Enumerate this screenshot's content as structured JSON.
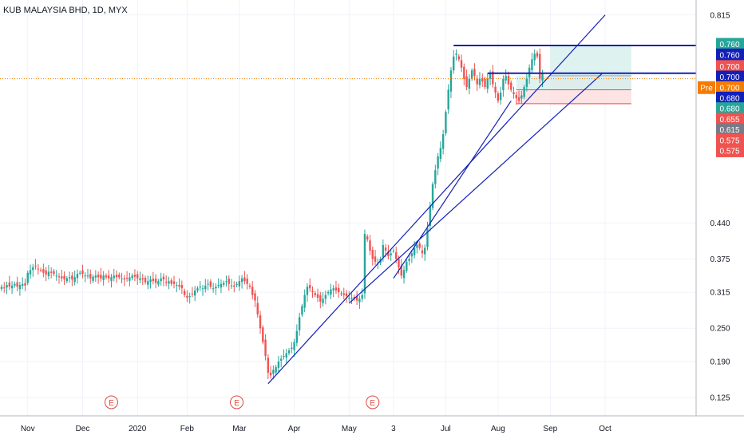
{
  "header": {
    "title": "KUB MALAYSIA BHD, 1D, MYX"
  },
  "colors": {
    "up": "#26a69a",
    "down": "#ef5350",
    "line": "#1320b8",
    "grid": "#f0f3fa",
    "axis": "#b2b5be",
    "current": "#f57c00",
    "target_fill": "#d6efec",
    "stop_fill": "#fde2e2"
  },
  "chart_data": {
    "type": "candlestick",
    "title": "KUB MALAYSIA BHD, 1D, MYX",
    "xlabel": "",
    "ylabel": "",
    "ylim": [
      0.092,
      0.842
    ],
    "grid": true,
    "x_ticks": [
      {
        "label": "Nov",
        "i": 10
      },
      {
        "label": "Dec",
        "i": 31
      },
      {
        "label": "2020",
        "i": 52
      },
      {
        "label": "Feb",
        "i": 71
      },
      {
        "label": "Mar",
        "i": 91
      },
      {
        "label": "Apr",
        "i": 112
      },
      {
        "label": "May",
        "i": 133
      },
      {
        "label": "3",
        "i": 150
      },
      {
        "label": "Jul",
        "i": 170
      },
      {
        "label": "Aug",
        "i": 190
      },
      {
        "label": "Sep",
        "i": 210
      },
      {
        "label": "Oct",
        "i": 231
      }
    ],
    "y_ticks": [
      "0.815",
      "0.440",
      "0.375",
      "0.315",
      "0.250",
      "0.190",
      "0.125"
    ],
    "series": {
      "close": [
        0.325,
        0.322,
        0.328,
        0.325,
        0.327,
        0.33,
        0.325,
        0.328,
        0.33,
        0.327,
        0.35,
        0.355,
        0.36,
        0.362,
        0.357,
        0.355,
        0.35,
        0.347,
        0.352,
        0.35,
        0.348,
        0.345,
        0.342,
        0.34,
        0.338,
        0.34,
        0.342,
        0.338,
        0.342,
        0.348,
        0.35,
        0.348,
        0.345,
        0.345,
        0.34,
        0.343,
        0.345,
        0.342,
        0.34,
        0.345,
        0.342,
        0.34,
        0.342,
        0.345,
        0.342,
        0.342,
        0.34,
        0.338,
        0.34,
        0.342,
        0.345,
        0.343,
        0.34,
        0.34,
        0.338,
        0.333,
        0.335,
        0.338,
        0.335,
        0.332,
        0.335,
        0.34,
        0.338,
        0.332,
        0.335,
        0.33,
        0.33,
        0.328,
        0.325,
        0.322,
        0.31,
        0.305,
        0.308,
        0.312,
        0.318,
        0.322,
        0.325,
        0.322,
        0.327,
        0.33,
        0.325,
        0.322,
        0.325,
        0.328,
        0.33,
        0.332,
        0.335,
        0.33,
        0.327,
        0.325,
        0.33,
        0.335,
        0.34,
        0.335,
        0.33,
        0.325,
        0.31,
        0.3,
        0.275,
        0.25,
        0.225,
        0.2,
        0.17,
        0.165,
        0.175,
        0.18,
        0.19,
        0.195,
        0.2,
        0.205,
        0.21,
        0.215,
        0.225,
        0.245,
        0.27,
        0.29,
        0.31,
        0.325,
        0.322,
        0.315,
        0.31,
        0.305,
        0.298,
        0.303,
        0.31,
        0.315,
        0.32,
        0.322,
        0.318,
        0.315,
        0.313,
        0.31,
        0.308,
        0.305,
        0.305,
        0.303,
        0.3,
        0.303,
        0.31,
        0.42,
        0.41,
        0.39,
        0.375,
        0.37,
        0.368,
        0.375,
        0.4,
        0.39,
        0.38,
        0.385,
        0.39,
        0.375,
        0.36,
        0.345,
        0.355,
        0.37,
        0.375,
        0.385,
        0.395,
        0.4,
        0.395,
        0.385,
        0.395,
        0.43,
        0.47,
        0.51,
        0.535,
        0.56,
        0.575,
        0.6,
        0.64,
        0.68,
        0.715,
        0.74,
        0.745,
        0.735,
        0.72,
        0.7,
        0.685,
        0.7,
        0.715,
        0.705,
        0.69,
        0.7,
        0.695,
        0.685,
        0.7,
        0.71,
        0.69,
        0.675,
        0.66,
        0.675,
        0.7,
        0.705,
        0.69,
        0.68,
        0.672,
        0.665,
        0.66,
        0.67,
        0.685,
        0.7,
        0.72,
        0.735,
        0.745,
        0.74,
        0.7,
        0.71
      ],
      "open_offset_note": "",
      "_": ""
    },
    "current_price": "0.700",
    "trendlines": [
      {
        "from": {
          "i": 102,
          "price": 0.15
        },
        "to": {
          "i": 231,
          "price": 0.815
        }
      },
      {
        "from": {
          "i": 133,
          "price": 0.295
        },
        "to": {
          "i": 230,
          "price": 0.71
        }
      },
      {
        "from": {
          "i": 150,
          "price": 0.34
        },
        "to": {
          "i": 195,
          "price": 0.66
        }
      }
    ],
    "levels": [
      {
        "price": 0.76,
        "from_i": 173,
        "color": "line"
      },
      {
        "price": 0.71,
        "from_i": 186,
        "color": "line"
      }
    ],
    "positions": [
      {
        "from_i": 210,
        "to_i": 241,
        "entry": 0.705,
        "target": 0.76,
        "stop": 0.655
      },
      {
        "from_i": 197,
        "to_i": 241,
        "entry": 0.68,
        "target": 0.705,
        "stop": 0.655
      }
    ],
    "earnings_markers": [
      {
        "label": "E",
        "i": 42
      },
      {
        "label": "E",
        "i": 90
      },
      {
        "label": "E",
        "i": 142
      }
    ],
    "price_tags": [
      {
        "label": "0.760",
        "price": 0.762,
        "bg": "#26a69a"
      },
      {
        "label": "0.760",
        "price": 0.743,
        "bg": "#1320b8"
      },
      {
        "label": "0.700",
        "price": 0.722,
        "bg": "#ef5350"
      },
      {
        "label": "0.700",
        "price": 0.703,
        "bg": "#1320b8"
      },
      {
        "label": "0.700",
        "price": 0.684,
        "bg": "#f57c00",
        "prefix": "Pre"
      },
      {
        "label": "0.680",
        "price": 0.665,
        "bg": "#1320b8"
      },
      {
        "label": "0.680",
        "price": 0.646,
        "bg": "#26a69a"
      },
      {
        "label": "0.655",
        "price": 0.627,
        "bg": "#ef5350"
      },
      {
        "label": "0.615",
        "price": 0.608,
        "bg": "#787b86"
      },
      {
        "label": "0.575",
        "price": 0.589,
        "bg": "#ef5350"
      },
      {
        "label": "0.575",
        "price": 0.57,
        "bg": "#ef5350"
      }
    ]
  }
}
